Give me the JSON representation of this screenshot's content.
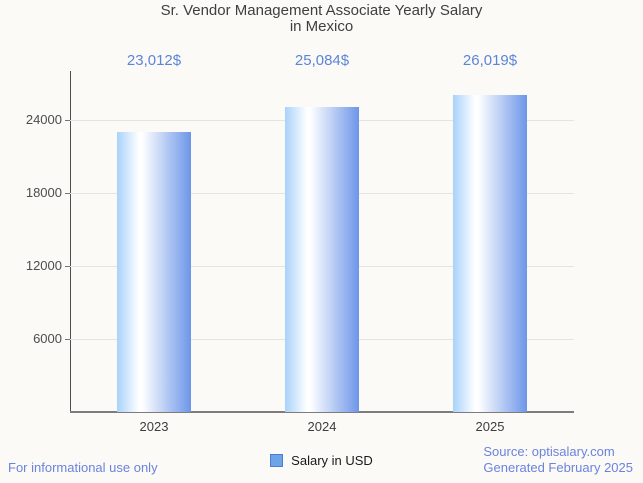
{
  "chart_data": {
    "type": "bar",
    "title": "Sr. Vendor Management Associate Yearly Salary in Mexico",
    "title_lines": [
      "Sr. Vendor Management Associate Yearly Salary",
      "in Mexico"
    ],
    "categories": [
      "2023",
      "2024",
      "2025"
    ],
    "series": [
      {
        "name": "Salary in USD",
        "values": [
          23012,
          25084,
          26019
        ]
      }
    ],
    "value_labels": [
      "23,012$",
      "25,084$",
      "26,019$"
    ],
    "xlabel": "",
    "ylabel": "",
    "yticks": [
      6000,
      12000,
      18000,
      24000
    ],
    "ylim": [
      0,
      28000
    ],
    "grid": true,
    "legend_position": "bottom-center"
  },
  "legend": {
    "label": "Salary in USD"
  },
  "footer": {
    "left_note": "For informational use only",
    "source_line1": "Source: optisalary.com",
    "source_line2": "Generated February 2025"
  },
  "colors": {
    "background": "#fbfaf7",
    "title_text": "#3f3f3f",
    "axis_text": "#4d4d4d",
    "gridline": "#e4e4e4",
    "value_label": "#5b86d6",
    "bar_gradient_left": "#a8d2fb",
    "bar_gradient_mid": "#ffffff",
    "bar_gradient_right": "#6d96e8",
    "legend_swatch_fill": "#6fa3e8",
    "legend_swatch_border": "#4b7fd2",
    "footer_blue": "#6b83dd"
  }
}
